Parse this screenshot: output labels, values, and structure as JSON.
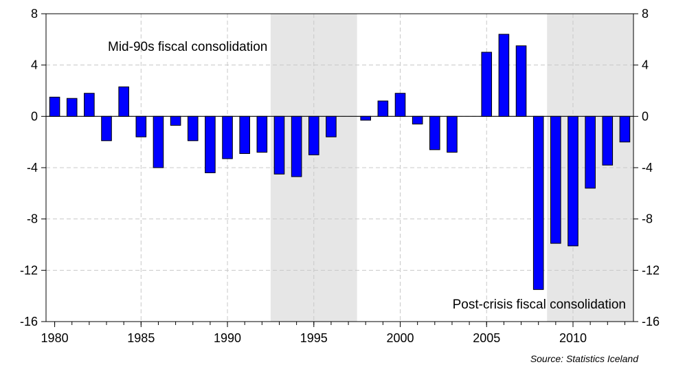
{
  "chart_data": {
    "type": "bar",
    "title": "",
    "xlabel": "",
    "ylabel": "",
    "x": [
      1980,
      1981,
      1982,
      1983,
      1984,
      1985,
      1986,
      1987,
      1988,
      1989,
      1990,
      1991,
      1992,
      1993,
      1994,
      1995,
      1996,
      1997,
      1998,
      1999,
      2000,
      2001,
      2002,
      2003,
      2004,
      2005,
      2006,
      2007,
      2008,
      2009,
      2010,
      2011,
      2012,
      2013
    ],
    "values": [
      1.5,
      1.4,
      1.8,
      -1.9,
      2.3,
      -1.6,
      -4.0,
      -0.7,
      -1.9,
      -4.4,
      -3.3,
      -2.9,
      -2.8,
      -4.5,
      -4.7,
      -3.0,
      -1.6,
      0.0,
      -0.3,
      1.2,
      1.8,
      -0.6,
      -2.6,
      -2.8,
      0.0,
      5.0,
      6.4,
      5.5,
      -13.5,
      -9.9,
      -10.1,
      -5.6,
      -3.8,
      -2.0
    ],
    "ylim": [
      -16,
      8
    ],
    "yticks": [
      8,
      4,
      0,
      -4,
      -8,
      -12,
      -16
    ],
    "xticks": [
      1980,
      1985,
      1990,
      1995,
      2000,
      2005,
      2010
    ],
    "bar_color": "#0000ff",
    "shaded_periods": [
      {
        "start": 1992.5,
        "end": 1997.5,
        "label": "Mid-90s fiscal consolidation"
      },
      {
        "start": 2008.5,
        "end": 2013.5,
        "label": "Post-crisis fiscal consolidation"
      }
    ],
    "shade_color": "#e6e6e6",
    "grid": true,
    "dual_y_axis": true
  },
  "source": "Source: Statistics Iceland"
}
